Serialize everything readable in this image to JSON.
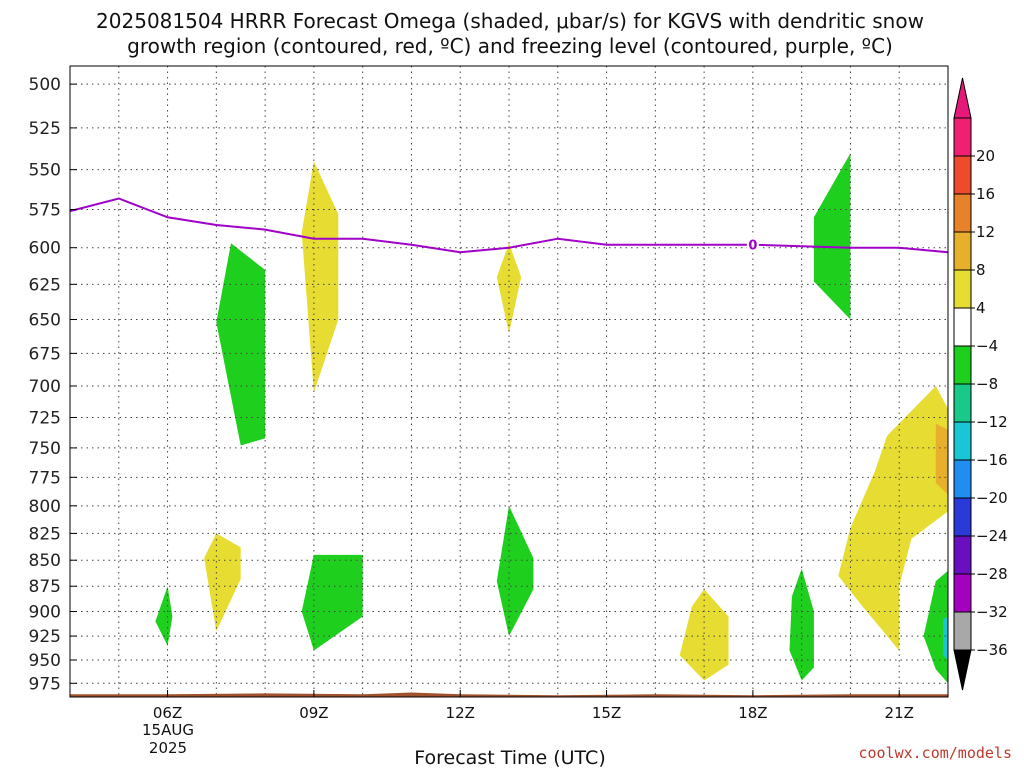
{
  "chart_data": {
    "type": "heatmap",
    "title_lines": [
      "2025081504 HRRR Forecast Omega (shaded, μbar/s) for KGVS with dendritic snow",
      "growth region (contoured, red, ºC) and freezing level (contoured, purple, ºC)"
    ],
    "xlabel": "Forecast Time (UTC)",
    "x_ticks": [
      {
        "hour": 6,
        "label": "06Z"
      },
      {
        "hour": 9,
        "label": "09Z"
      },
      {
        "hour": 12,
        "label": "12Z"
      },
      {
        "hour": 15,
        "label": "15Z"
      },
      {
        "hour": 18,
        "label": "18Z"
      },
      {
        "hour": 21,
        "label": "21Z"
      }
    ],
    "x_date_label": [
      "15AUG",
      "2025"
    ],
    "x_range_hours": [
      4,
      22
    ],
    "y_unit": "hPa",
    "y_ticks": [
      500,
      525,
      550,
      575,
      600,
      625,
      650,
      675,
      700,
      725,
      750,
      775,
      800,
      825,
      850,
      875,
      900,
      925,
      950,
      975
    ],
    "y_range": [
      490,
      990
    ],
    "y_scale": "log-pressure",
    "grid": true,
    "colorbar": {
      "levels": [
        -36,
        -32,
        -28,
        -24,
        -20,
        -16,
        -12,
        -8,
        -4,
        4,
        8,
        12,
        16,
        20
      ],
      "colors": [
        "#a8a8a8",
        "#a500c0",
        "#6a0fbf",
        "#2a3ad8",
        "#1f8ef0",
        "#18c6d6",
        "#18c98a",
        "#1ecf1e",
        "#ffffff",
        "#e6dc32",
        "#e6b02c",
        "#e8822a",
        "#ee4a2c",
        "#f02070"
      ],
      "below_color": "#000000",
      "above_color": "#e6197a"
    },
    "omega_regions": [
      {
        "value": -6,
        "points": [
          [
            7.3,
            597
          ],
          [
            8.0,
            615
          ],
          [
            8.0,
            742
          ],
          [
            7.5,
            748
          ],
          [
            7.0,
            652
          ]
        ]
      },
      {
        "value": 5,
        "points": [
          [
            9.0,
            545
          ],
          [
            9.5,
            578
          ],
          [
            9.5,
            650
          ],
          [
            9.0,
            705
          ],
          [
            8.75,
            590
          ]
        ]
      },
      {
        "value": 5,
        "points": [
          [
            13.0,
            597
          ],
          [
            13.25,
            620
          ],
          [
            13.0,
            660
          ],
          [
            12.75,
            620
          ]
        ]
      },
      {
        "value": -6,
        "points": [
          [
            19.25,
            580
          ],
          [
            20.0,
            540
          ],
          [
            20.0,
            650
          ],
          [
            19.25,
            623
          ]
        ]
      },
      {
        "value": 5,
        "points": [
          [
            7.0,
            825
          ],
          [
            7.5,
            838
          ],
          [
            7.5,
            868
          ],
          [
            7.0,
            920
          ],
          [
            6.75,
            848
          ]
        ]
      },
      {
        "value": -6,
        "points": [
          [
            6.0,
            875
          ],
          [
            6.1,
            905
          ],
          [
            6.0,
            935
          ],
          [
            5.75,
            910
          ]
        ]
      },
      {
        "value": -6,
        "points": [
          [
            9.0,
            845
          ],
          [
            10.0,
            845
          ],
          [
            10.0,
            905
          ],
          [
            9.0,
            940
          ],
          [
            8.75,
            900
          ]
        ]
      },
      {
        "value": -6,
        "points": [
          [
            13.0,
            800
          ],
          [
            13.5,
            848
          ],
          [
            13.5,
            878
          ],
          [
            13.0,
            925
          ],
          [
            12.75,
            870
          ]
        ]
      },
      {
        "value": 5,
        "points": [
          [
            17.0,
            878
          ],
          [
            17.5,
            905
          ],
          [
            17.5,
            955
          ],
          [
            17.0,
            972
          ],
          [
            16.5,
            945
          ],
          [
            16.75,
            895
          ]
        ]
      },
      {
        "value": -6,
        "points": [
          [
            19.0,
            858
          ],
          [
            19.25,
            900
          ],
          [
            19.25,
            958
          ],
          [
            19.0,
            972
          ],
          [
            18.75,
            940
          ],
          [
            18.8,
            885
          ]
        ]
      },
      {
        "value": 5,
        "points": [
          [
            20.0,
            820
          ],
          [
            20.5,
            770
          ],
          [
            20.75,
            740
          ],
          [
            21.75,
            700
          ],
          [
            22.0,
            718
          ],
          [
            22.0,
            805
          ],
          [
            21.25,
            830
          ],
          [
            21.0,
            875
          ],
          [
            21.0,
            940
          ],
          [
            20.25,
            895
          ],
          [
            19.75,
            865
          ]
        ]
      },
      {
        "value": 10,
        "points": [
          [
            21.75,
            730
          ],
          [
            22.0,
            735
          ],
          [
            22.0,
            790
          ],
          [
            21.75,
            780
          ]
        ]
      },
      {
        "value": -6,
        "points": [
          [
            21.75,
            870
          ],
          [
            22.0,
            860
          ],
          [
            22.0,
            975
          ],
          [
            21.75,
            960
          ],
          [
            21.5,
            925
          ]
        ]
      },
      {
        "value": -14,
        "points": [
          [
            21.9,
            908
          ],
          [
            22.0,
            905
          ],
          [
            22.0,
            950
          ],
          [
            21.9,
            945
          ]
        ]
      }
    ],
    "freezing_level": {
      "label": "0",
      "label_hour": 18,
      "points": [
        [
          4.0,
          576
        ],
        [
          5.0,
          568
        ],
        [
          6.0,
          580
        ],
        [
          7.0,
          585
        ],
        [
          8.0,
          588
        ],
        [
          9.0,
          594
        ],
        [
          10.0,
          594
        ],
        [
          11.0,
          598
        ],
        [
          12.0,
          603
        ],
        [
          13.0,
          600
        ],
        [
          14.0,
          594
        ],
        [
          15.0,
          598
        ],
        [
          16.0,
          598
        ],
        [
          17.0,
          598
        ],
        [
          18.0,
          598
        ],
        [
          19.0,
          599
        ],
        [
          20.0,
          600
        ],
        [
          21.0,
          600
        ],
        [
          22.0,
          603
        ]
      ]
    },
    "terrain_surface": [
      [
        4.0,
        987
      ],
      [
        6.0,
        987
      ],
      [
        8.0,
        986
      ],
      [
        10.0,
        987
      ],
      [
        11.0,
        985
      ],
      [
        12.0,
        987
      ],
      [
        14.0,
        988
      ],
      [
        16.0,
        987
      ],
      [
        18.0,
        988
      ],
      [
        20.0,
        987
      ],
      [
        22.0,
        987
      ]
    ],
    "terrain_color": "#a0522d",
    "freezing_color": "#a000c8"
  },
  "credit": "coolwx.com/models"
}
